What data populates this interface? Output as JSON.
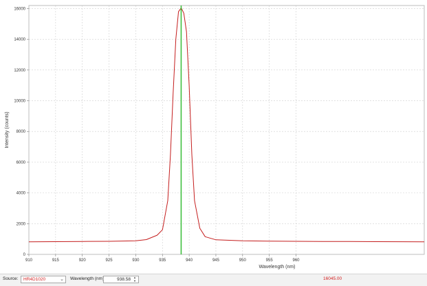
{
  "chart_data": {
    "type": "line",
    "title": "",
    "xlabel": "Wavelength (nm)",
    "ylabel": "Intensity (counts)",
    "xlim": [
      910,
      984
    ],
    "ylim": [
      0,
      16200
    ],
    "x_ticks": [
      910,
      915,
      920,
      925,
      930,
      935,
      940,
      945,
      950,
      955,
      960
    ],
    "x_tick_labels": [
      "910",
      "915",
      "920",
      "925",
      "930",
      "935",
      "940",
      "945",
      "950",
      "955",
      "960"
    ],
    "y_ticks": [
      0,
      2000,
      4000,
      6000,
      8000,
      10000,
      12000,
      14000,
      16000
    ],
    "y_tick_labels": [
      "0",
      "2000",
      "4000",
      "6000",
      "8000",
      "10000",
      "12000",
      "14000",
      "16000"
    ],
    "grid": true,
    "legend": "none",
    "series": [
      {
        "color": "#c41c1c",
        "x": [
          910,
          915,
          920,
          925,
          930,
          932,
          934,
          935,
          936,
          936.5,
          937,
          937.5,
          938,
          938.5,
          939,
          939.5,
          940,
          940.5,
          941,
          942,
          943,
          945,
          950,
          955,
          960,
          965,
          970,
          975,
          980,
          984
        ],
        "y": [
          820,
          830,
          840,
          850,
          880,
          960,
          1250,
          1600,
          3500,
          6500,
          10500,
          14000,
          15800,
          16050,
          15700,
          14500,
          11000,
          6500,
          3500,
          1700,
          1150,
          950,
          880,
          860,
          850,
          840,
          835,
          830,
          825,
          820
        ]
      }
    ],
    "marker_line": {
      "x": 938.5,
      "color": "#3fbf3f"
    }
  },
  "status": {
    "source_label": "Source:",
    "source_value": "HR4D1020",
    "wavelength_label": "Wavelength (nm):",
    "wavelength_value": "938.58",
    "readout": "16045.00"
  }
}
